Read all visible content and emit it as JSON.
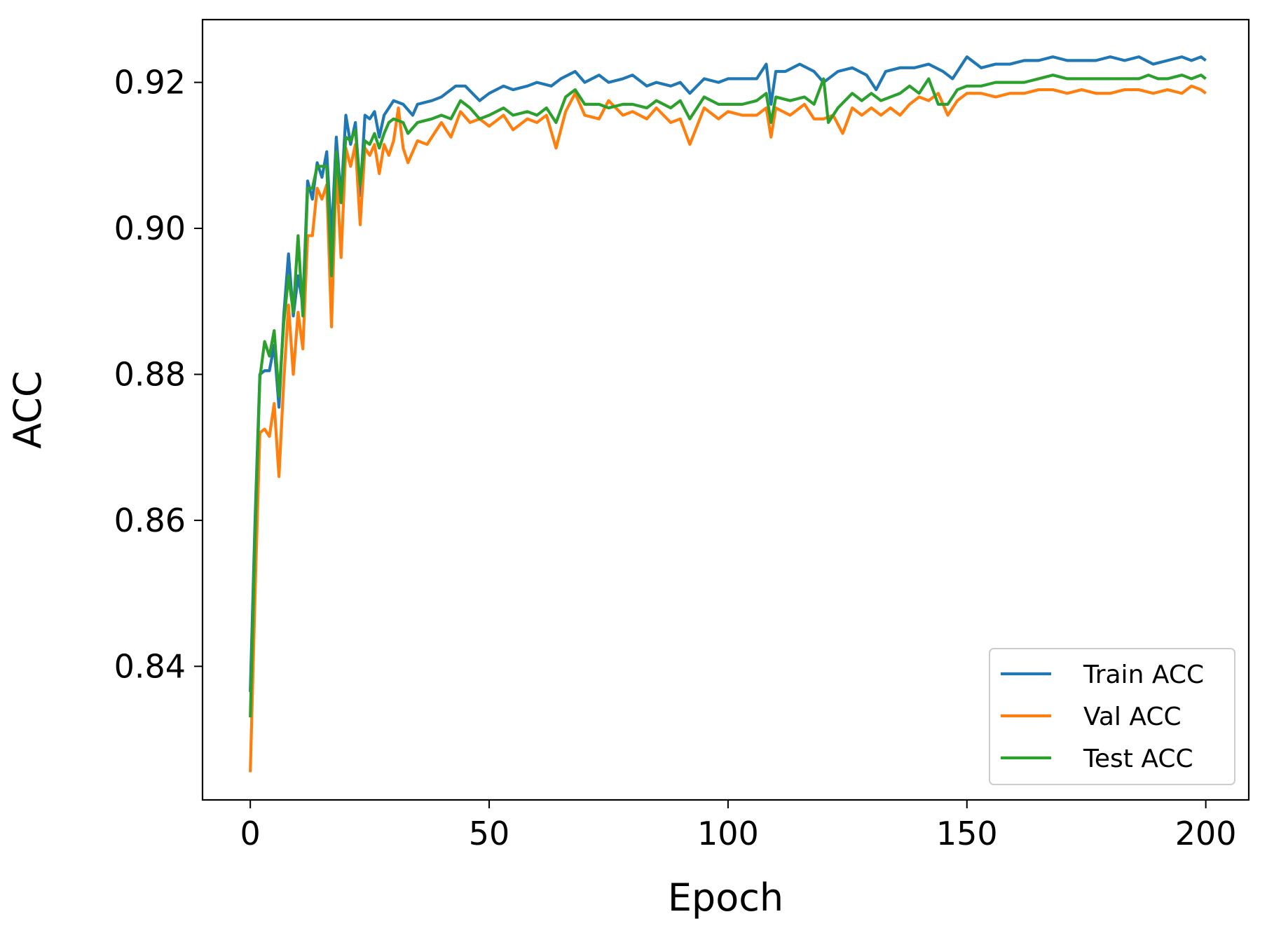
{
  "chart_data": {
    "type": "line",
    "title": "",
    "xlabel": "Epoch",
    "ylabel": "ACC",
    "xlim": [
      -10,
      209
    ],
    "ylim": [
      0.8217,
      0.9286
    ],
    "xticks": [
      0,
      50,
      100,
      150,
      200
    ],
    "xtick_labels": [
      "0",
      "50",
      "100",
      "150",
      "200"
    ],
    "yticks": [
      0.84,
      0.86,
      0.88,
      0.9,
      0.92
    ],
    "ytick_labels": [
      "0.84",
      "0.86",
      "0.88",
      "0.90",
      "0.92"
    ],
    "grid": false,
    "legend_position": "bottom-right",
    "series_anchors_note": "",
    "series": [
      {
        "name": "Train ACC",
        "color": "#1f77b4",
        "points": [
          [
            0,
            0.8365
          ],
          [
            1,
            0.86
          ],
          [
            2,
            0.88
          ],
          [
            3,
            0.8805
          ],
          [
            4,
            0.8805
          ],
          [
            5,
            0.884
          ],
          [
            6,
            0.8755
          ],
          [
            7,
            0.888
          ],
          [
            8,
            0.8965
          ],
          [
            9,
            0.888
          ],
          [
            10,
            0.8935
          ],
          [
            11,
            0.8895
          ],
          [
            12,
            0.9065
          ],
          [
            13,
            0.904
          ],
          [
            14,
            0.909
          ],
          [
            15,
            0.907
          ],
          [
            16,
            0.9105
          ],
          [
            17,
            0.8985
          ],
          [
            18,
            0.9125
          ],
          [
            19,
            0.904
          ],
          [
            20,
            0.9155
          ],
          [
            21,
            0.9115
          ],
          [
            22,
            0.9145
          ],
          [
            23,
            0.9045
          ],
          [
            24,
            0.9155
          ],
          [
            25,
            0.915
          ],
          [
            26,
            0.916
          ],
          [
            27,
            0.9125
          ],
          [
            28,
            0.9155
          ],
          [
            29,
            0.9165
          ],
          [
            30,
            0.9175
          ],
          [
            32,
            0.917
          ],
          [
            34,
            0.9155
          ],
          [
            35,
            0.917
          ],
          [
            38,
            0.9175
          ],
          [
            40,
            0.918
          ],
          [
            43,
            0.9195
          ],
          [
            45,
            0.9195
          ],
          [
            48,
            0.9175
          ],
          [
            50,
            0.9185
          ],
          [
            53,
            0.9195
          ],
          [
            55,
            0.919
          ],
          [
            58,
            0.9195
          ],
          [
            60,
            0.92
          ],
          [
            63,
            0.9195
          ],
          [
            65,
            0.9205
          ],
          [
            68,
            0.9215
          ],
          [
            70,
            0.92
          ],
          [
            73,
            0.921
          ],
          [
            75,
            0.92
          ],
          [
            78,
            0.9205
          ],
          [
            80,
            0.921
          ],
          [
            83,
            0.9195
          ],
          [
            85,
            0.92
          ],
          [
            88,
            0.9195
          ],
          [
            90,
            0.92
          ],
          [
            92,
            0.9185
          ],
          [
            95,
            0.9205
          ],
          [
            98,
            0.92
          ],
          [
            100,
            0.9205
          ],
          [
            103,
            0.9205
          ],
          [
            106,
            0.9205
          ],
          [
            108,
            0.9225
          ],
          [
            109,
            0.917
          ],
          [
            110,
            0.9215
          ],
          [
            112,
            0.9215
          ],
          [
            115,
            0.9225
          ],
          [
            118,
            0.9215
          ],
          [
            120,
            0.92
          ],
          [
            123,
            0.9215
          ],
          [
            126,
            0.922
          ],
          [
            129,
            0.921
          ],
          [
            131,
            0.919
          ],
          [
            133,
            0.9215
          ],
          [
            136,
            0.922
          ],
          [
            139,
            0.922
          ],
          [
            142,
            0.9225
          ],
          [
            145,
            0.9215
          ],
          [
            147,
            0.9205
          ],
          [
            149,
            0.9225
          ],
          [
            150,
            0.9235
          ],
          [
            153,
            0.922
          ],
          [
            156,
            0.9225
          ],
          [
            159,
            0.9225
          ],
          [
            162,
            0.923
          ],
          [
            165,
            0.923
          ],
          [
            168,
            0.9235
          ],
          [
            171,
            0.923
          ],
          [
            174,
            0.923
          ],
          [
            177,
            0.923
          ],
          [
            180,
            0.9235
          ],
          [
            183,
            0.923
          ],
          [
            186,
            0.9235
          ],
          [
            189,
            0.9225
          ],
          [
            192,
            0.923
          ],
          [
            195,
            0.9235
          ],
          [
            197,
            0.923
          ],
          [
            199,
            0.9235
          ],
          [
            200,
            0.923
          ]
        ]
      },
      {
        "name": "Val ACC",
        "color": "#ff7f0e",
        "points": [
          [
            0,
            0.8255
          ],
          [
            1,
            0.85
          ],
          [
            2,
            0.872
          ],
          [
            3,
            0.8725
          ],
          [
            4,
            0.8715
          ],
          [
            5,
            0.876
          ],
          [
            6,
            0.866
          ],
          [
            7,
            0.879
          ],
          [
            8,
            0.8895
          ],
          [
            9,
            0.88
          ],
          [
            10,
            0.8885
          ],
          [
            11,
            0.8835
          ],
          [
            12,
            0.899
          ],
          [
            13,
            0.899
          ],
          [
            14,
            0.9055
          ],
          [
            15,
            0.904
          ],
          [
            16,
            0.906
          ],
          [
            17,
            0.8865
          ],
          [
            18,
            0.9085
          ],
          [
            19,
            0.896
          ],
          [
            20,
            0.911
          ],
          [
            21,
            0.9085
          ],
          [
            22,
            0.9115
          ],
          [
            23,
            0.9005
          ],
          [
            24,
            0.911
          ],
          [
            25,
            0.91
          ],
          [
            26,
            0.9115
          ],
          [
            27,
            0.9075
          ],
          [
            28,
            0.9115
          ],
          [
            29,
            0.91
          ],
          [
            30,
            0.912
          ],
          [
            31,
            0.9165
          ],
          [
            32,
            0.911
          ],
          [
            33,
            0.909
          ],
          [
            35,
            0.912
          ],
          [
            37,
            0.9115
          ],
          [
            40,
            0.9145
          ],
          [
            42,
            0.9125
          ],
          [
            44,
            0.916
          ],
          [
            46,
            0.9145
          ],
          [
            48,
            0.915
          ],
          [
            50,
            0.914
          ],
          [
            53,
            0.9155
          ],
          [
            55,
            0.9135
          ],
          [
            58,
            0.915
          ],
          [
            60,
            0.9145
          ],
          [
            62,
            0.9155
          ],
          [
            64,
            0.911
          ],
          [
            66,
            0.916
          ],
          [
            68,
            0.9185
          ],
          [
            70,
            0.9155
          ],
          [
            73,
            0.915
          ],
          [
            75,
            0.9175
          ],
          [
            78,
            0.9155
          ],
          [
            80,
            0.916
          ],
          [
            83,
            0.915
          ],
          [
            85,
            0.9165
          ],
          [
            88,
            0.9145
          ],
          [
            90,
            0.915
          ],
          [
            92,
            0.9115
          ],
          [
            95,
            0.9165
          ],
          [
            98,
            0.915
          ],
          [
            100,
            0.916
          ],
          [
            103,
            0.9155
          ],
          [
            106,
            0.9155
          ],
          [
            108,
            0.9165
          ],
          [
            109,
            0.9125
          ],
          [
            110,
            0.9165
          ],
          [
            113,
            0.9155
          ],
          [
            116,
            0.917
          ],
          [
            118,
            0.915
          ],
          [
            120,
            0.915
          ],
          [
            122,
            0.9155
          ],
          [
            124,
            0.913
          ],
          [
            126,
            0.9165
          ],
          [
            128,
            0.9155
          ],
          [
            130,
            0.9165
          ],
          [
            132,
            0.9155
          ],
          [
            134,
            0.9165
          ],
          [
            136,
            0.9155
          ],
          [
            138,
            0.917
          ],
          [
            140,
            0.918
          ],
          [
            142,
            0.9175
          ],
          [
            144,
            0.9185
          ],
          [
            146,
            0.9155
          ],
          [
            148,
            0.9175
          ],
          [
            150,
            0.9185
          ],
          [
            153,
            0.9185
          ],
          [
            156,
            0.918
          ],
          [
            159,
            0.9185
          ],
          [
            162,
            0.9185
          ],
          [
            165,
            0.919
          ],
          [
            168,
            0.919
          ],
          [
            171,
            0.9185
          ],
          [
            174,
            0.919
          ],
          [
            177,
            0.9185
          ],
          [
            180,
            0.9185
          ],
          [
            183,
            0.919
          ],
          [
            186,
            0.919
          ],
          [
            189,
            0.9185
          ],
          [
            192,
            0.919
          ],
          [
            195,
            0.9185
          ],
          [
            197,
            0.9195
          ],
          [
            199,
            0.919
          ],
          [
            200,
            0.9185
          ]
        ]
      },
      {
        "name": "Test ACC",
        "color": "#2ca02c",
        "points": [
          [
            0,
            0.833
          ],
          [
            1,
            0.858
          ],
          [
            2,
            0.8795
          ],
          [
            3,
            0.8845
          ],
          [
            4,
            0.8825
          ],
          [
            5,
            0.886
          ],
          [
            6,
            0.877
          ],
          [
            7,
            0.887
          ],
          [
            8,
            0.8935
          ],
          [
            9,
            0.8885
          ],
          [
            10,
            0.899
          ],
          [
            11,
            0.888
          ],
          [
            12,
            0.9055
          ],
          [
            13,
            0.9055
          ],
          [
            14,
            0.9085
          ],
          [
            15,
            0.9085
          ],
          [
            16,
            0.9085
          ],
          [
            17,
            0.8935
          ],
          [
            18,
            0.9105
          ],
          [
            19,
            0.9035
          ],
          [
            20,
            0.9125
          ],
          [
            21,
            0.912
          ],
          [
            22,
            0.9135
          ],
          [
            23,
            0.906
          ],
          [
            24,
            0.912
          ],
          [
            25,
            0.9115
          ],
          [
            26,
            0.913
          ],
          [
            27,
            0.911
          ],
          [
            28,
            0.913
          ],
          [
            29,
            0.9145
          ],
          [
            30,
            0.915
          ],
          [
            32,
            0.9145
          ],
          [
            33,
            0.913
          ],
          [
            35,
            0.9145
          ],
          [
            38,
            0.915
          ],
          [
            40,
            0.9155
          ],
          [
            42,
            0.915
          ],
          [
            44,
            0.9175
          ],
          [
            46,
            0.9165
          ],
          [
            48,
            0.915
          ],
          [
            50,
            0.9155
          ],
          [
            53,
            0.9165
          ],
          [
            55,
            0.9155
          ],
          [
            58,
            0.916
          ],
          [
            60,
            0.9155
          ],
          [
            62,
            0.9165
          ],
          [
            64,
            0.9145
          ],
          [
            66,
            0.918
          ],
          [
            68,
            0.919
          ],
          [
            70,
            0.917
          ],
          [
            73,
            0.917
          ],
          [
            75,
            0.9165
          ],
          [
            78,
            0.917
          ],
          [
            80,
            0.917
          ],
          [
            83,
            0.9165
          ],
          [
            85,
            0.9175
          ],
          [
            88,
            0.9165
          ],
          [
            90,
            0.9175
          ],
          [
            92,
            0.915
          ],
          [
            95,
            0.918
          ],
          [
            98,
            0.917
          ],
          [
            100,
            0.917
          ],
          [
            103,
            0.917
          ],
          [
            106,
            0.9175
          ],
          [
            108,
            0.9185
          ],
          [
            109,
            0.9145
          ],
          [
            110,
            0.918
          ],
          [
            113,
            0.9175
          ],
          [
            116,
            0.918
          ],
          [
            118,
            0.917
          ],
          [
            120,
            0.9205
          ],
          [
            121,
            0.9145
          ],
          [
            123,
            0.9165
          ],
          [
            126,
            0.9185
          ],
          [
            128,
            0.9175
          ],
          [
            130,
            0.9185
          ],
          [
            132,
            0.9175
          ],
          [
            134,
            0.918
          ],
          [
            136,
            0.9185
          ],
          [
            138,
            0.9195
          ],
          [
            140,
            0.9185
          ],
          [
            142,
            0.9205
          ],
          [
            144,
            0.917
          ],
          [
            146,
            0.917
          ],
          [
            148,
            0.919
          ],
          [
            150,
            0.9195
          ],
          [
            153,
            0.9195
          ],
          [
            156,
            0.92
          ],
          [
            159,
            0.92
          ],
          [
            162,
            0.92
          ],
          [
            165,
            0.9205
          ],
          [
            168,
            0.921
          ],
          [
            171,
            0.9205
          ],
          [
            174,
            0.9205
          ],
          [
            177,
            0.9205
          ],
          [
            180,
            0.9205
          ],
          [
            183,
            0.9205
          ],
          [
            186,
            0.9205
          ],
          [
            188,
            0.921
          ],
          [
            190,
            0.9205
          ],
          [
            192,
            0.9205
          ],
          [
            195,
            0.921
          ],
          [
            197,
            0.9205
          ],
          [
            199,
            0.921
          ],
          [
            200,
            0.9205
          ]
        ]
      }
    ]
  }
}
